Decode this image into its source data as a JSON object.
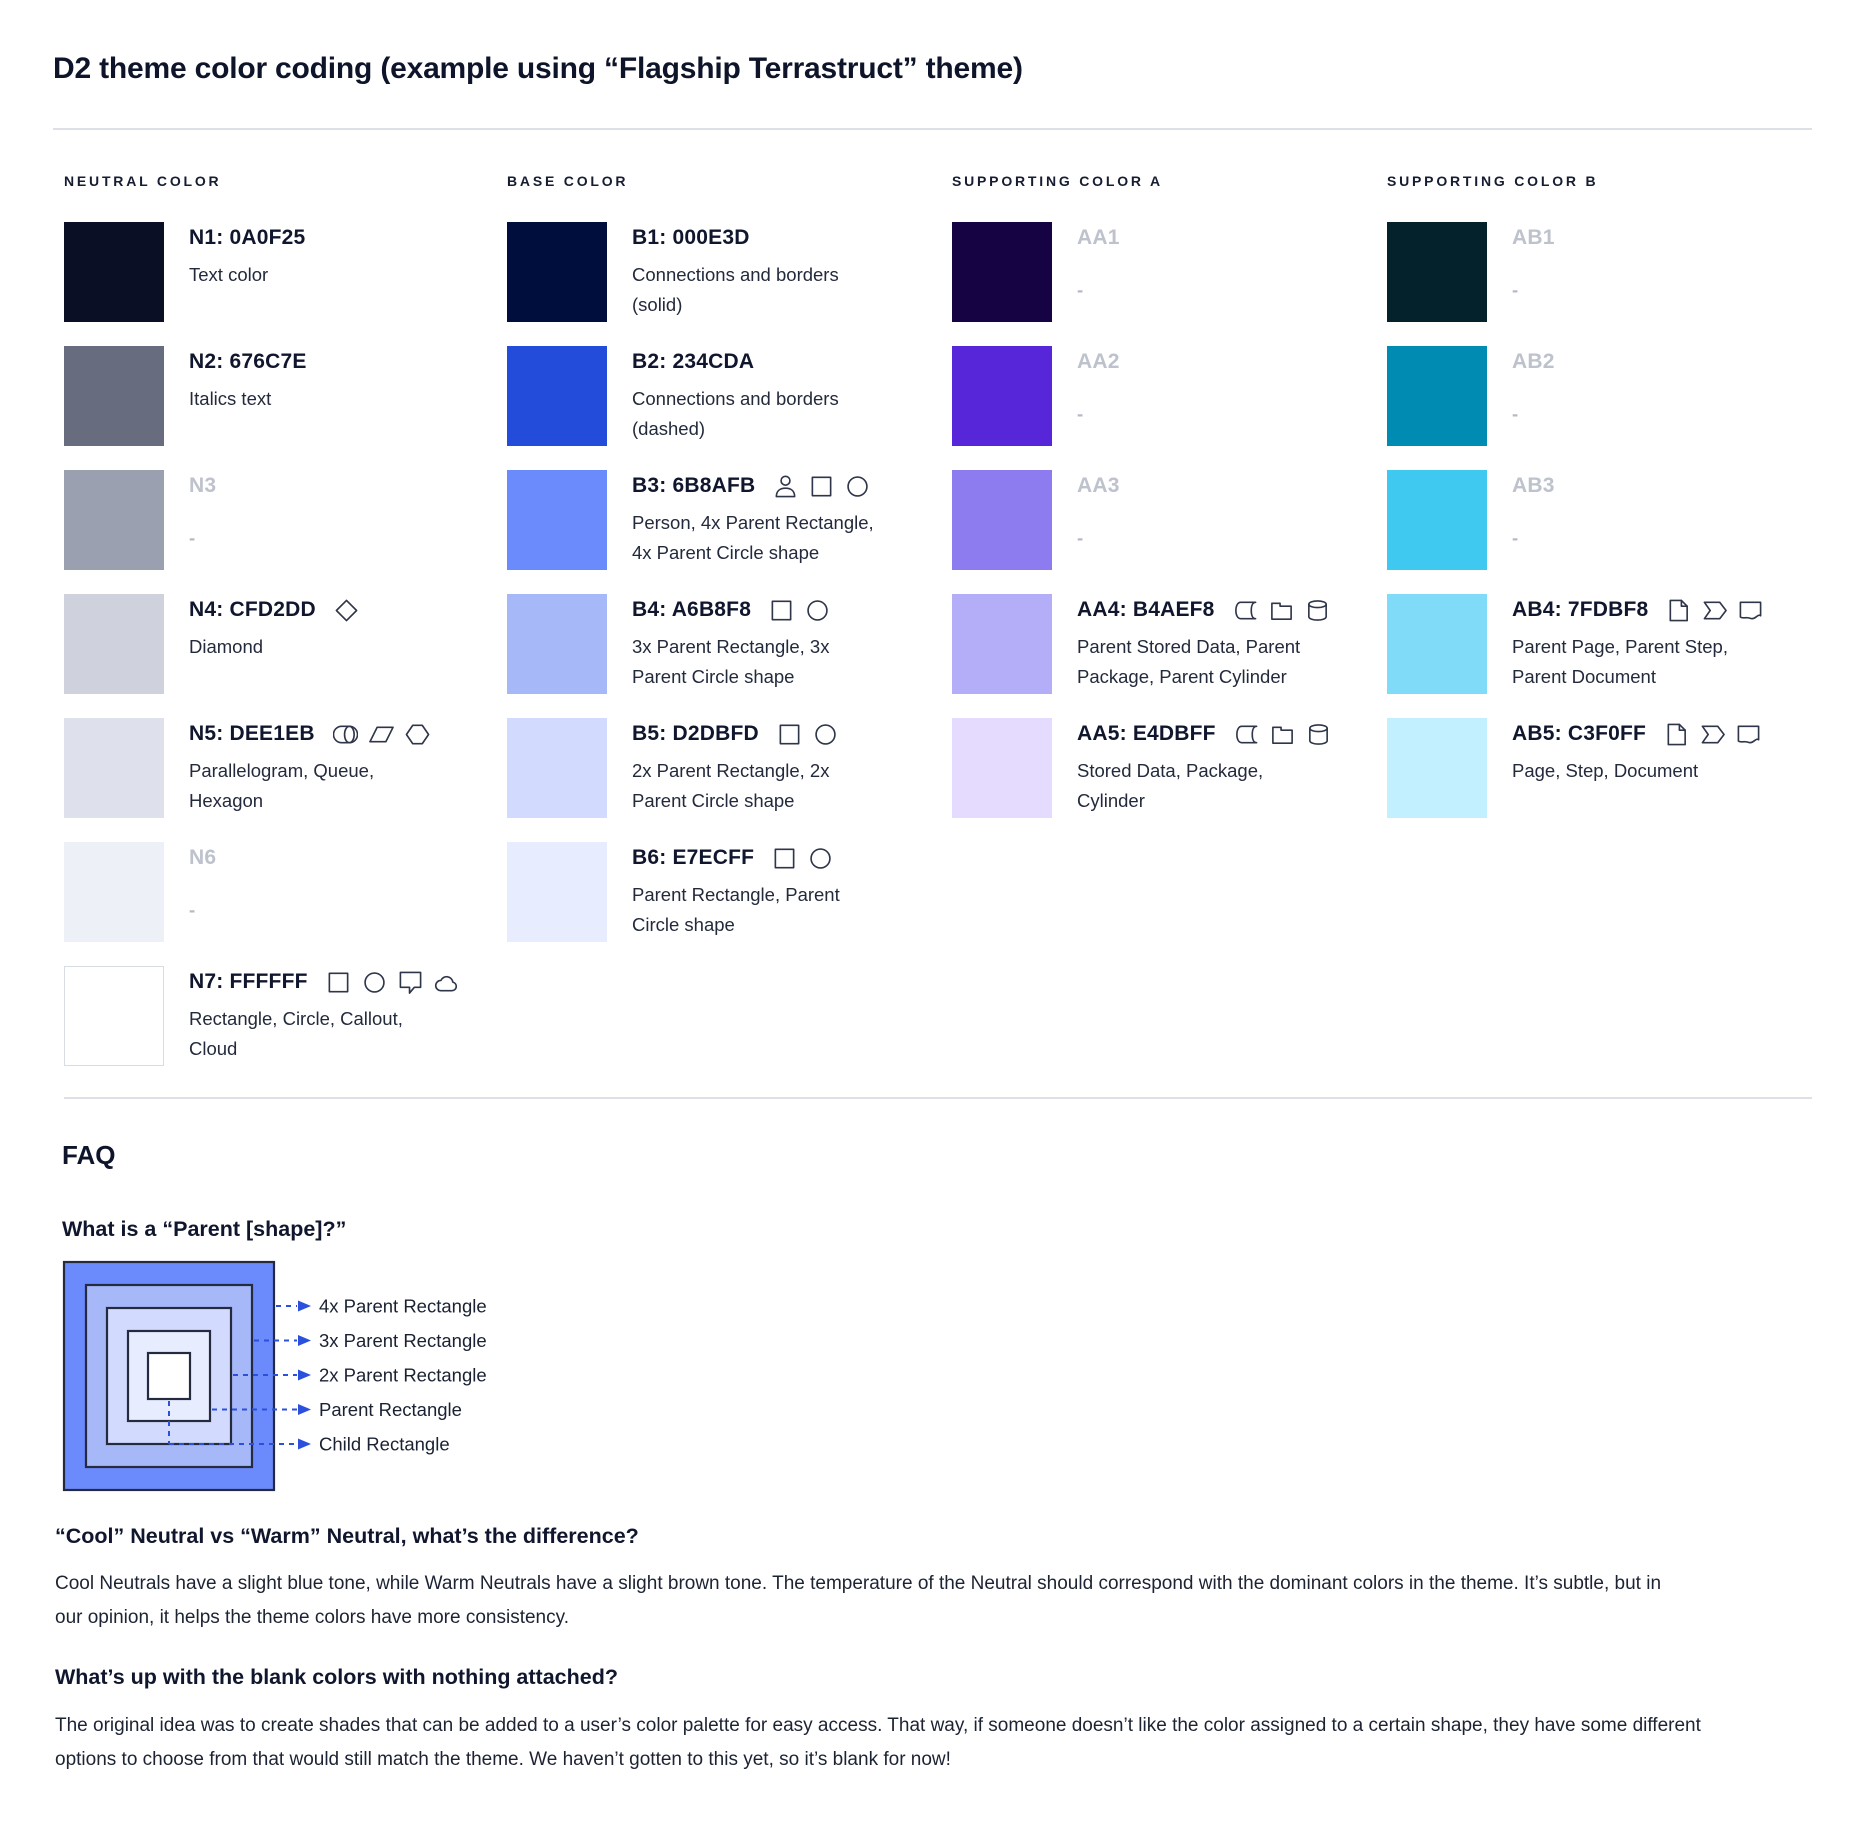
{
  "page": {
    "title": "D2 theme color coding (example using “Flagship Terrastruct” theme)"
  },
  "palette": {
    "columns": [
      {
        "header": "NEUTRAL COLOR",
        "rows": [
          {
            "label": "N1: 0A0F25",
            "swatch": "#0A0F25",
            "description": "Text color",
            "icons": [],
            "muted": false,
            "bordered": false
          },
          {
            "label": "N2: 676C7E",
            "swatch": "#676C7E",
            "description": "Italics text",
            "icons": [],
            "muted": false,
            "bordered": false
          },
          {
            "label": "N3",
            "swatch": "#9AA0AF",
            "description": "-",
            "icons": [],
            "muted": true,
            "bordered": false
          },
          {
            "label": "N4: CFD2DD",
            "swatch": "#CFD2DD",
            "description": "Diamond",
            "icons": [
              "diamond-icon"
            ],
            "muted": false,
            "bordered": false
          },
          {
            "label": "N5: DEE1EB",
            "swatch": "#DEE1EB",
            "description": "Parallelogram, Queue, Hexagon",
            "icons": [
              "queue-icon",
              "parallelogram-icon",
              "hexagon-icon"
            ],
            "muted": false,
            "bordered": false
          },
          {
            "label": "N6",
            "swatch": "#EDF0F7",
            "description": "-",
            "icons": [],
            "muted": true,
            "bordered": false
          },
          {
            "label": "N7: FFFFFF",
            "swatch": "#FFFFFF",
            "description": "Rectangle, Circle, Callout, Cloud",
            "icons": [
              "rectangle-icon",
              "circle-icon",
              "callout-icon",
              "cloud-icon"
            ],
            "muted": false,
            "bordered": true
          }
        ]
      },
      {
        "header": "BASE COLOR",
        "rows": [
          {
            "label": "B1: 000E3D",
            "swatch": "#000E3D",
            "description": "Connections and borders (solid)",
            "icons": [],
            "muted": false,
            "bordered": false
          },
          {
            "label": "B2: 234CDA",
            "swatch": "#234CDA",
            "description": "Connections and borders (dashed)",
            "icons": [],
            "muted": false,
            "bordered": false
          },
          {
            "label": "B3: 6B8AFB",
            "swatch": "#6B8AFB",
            "description": "Person, 4x Parent Rectangle, 4x Parent Circle shape",
            "icons": [
              "person-icon",
              "rectangle-icon",
              "circle-icon"
            ],
            "muted": false,
            "bordered": false
          },
          {
            "label": "B4: A6B8F8",
            "swatch": "#A6B8F8",
            "description": "3x Parent Rectangle, 3x Parent Circle shape",
            "icons": [
              "rectangle-icon",
              "circle-icon"
            ],
            "muted": false,
            "bordered": false
          },
          {
            "label": "B5: D2DBFD",
            "swatch": "#D2DBFD",
            "description": "2x Parent Rectangle, 2x Parent Circle shape",
            "icons": [
              "rectangle-icon",
              "circle-icon"
            ],
            "muted": false,
            "bordered": false
          },
          {
            "label": "B6: E7ECFF",
            "swatch": "#E7ECFF",
            "description": "Parent Rectangle, Parent Circle shape",
            "icons": [
              "rectangle-icon",
              "circle-icon"
            ],
            "muted": false,
            "bordered": false
          }
        ]
      },
      {
        "header": "SUPPORTING COLOR A",
        "rows": [
          {
            "label": "AA1",
            "swatch": "#160344",
            "description": "-",
            "icons": [],
            "muted": true,
            "bordered": false
          },
          {
            "label": "AA2",
            "swatch": "#5726D9",
            "description": "-",
            "icons": [],
            "muted": true,
            "bordered": false
          },
          {
            "label": "AA3",
            "swatch": "#8C7CF0",
            "description": "-",
            "icons": [],
            "muted": true,
            "bordered": false
          },
          {
            "label": "AA4: B4AEF8",
            "swatch": "#B4AEF8",
            "description": "Parent Stored Data, Parent Package, Parent Cylinder",
            "icons": [
              "stored-data-icon",
              "package-icon",
              "cylinder-icon"
            ],
            "muted": false,
            "bordered": false
          },
          {
            "label": "AA5: E4DBFF",
            "swatch": "#E4DBFF",
            "description": "Stored Data, Package, Cylinder",
            "icons": [
              "stored-data-icon",
              "package-icon",
              "cylinder-icon"
            ],
            "muted": false,
            "bordered": false
          }
        ]
      },
      {
        "header": "SUPPORTING COLOR B",
        "rows": [
          {
            "label": "AB1",
            "swatch": "#03222C",
            "description": "-",
            "icons": [],
            "muted": true,
            "bordered": false
          },
          {
            "label": "AB2",
            "swatch": "#008BB2",
            "description": "-",
            "icons": [],
            "muted": true,
            "bordered": false
          },
          {
            "label": "AB3",
            "swatch": "#3FC8F0",
            "description": "-",
            "icons": [],
            "muted": true,
            "bordered": false
          },
          {
            "label": "AB4: 7FDBF8",
            "swatch": "#7FDBF8",
            "description": "Parent Page, Parent Step, Parent Document",
            "icons": [
              "page-icon",
              "step-icon",
              "document-icon"
            ],
            "muted": false,
            "bordered": false
          },
          {
            "label": "AB5: C3F0FF",
            "swatch": "#C3F0FF",
            "description": "Page, Step, Document",
            "icons": [
              "page-icon",
              "step-icon",
              "document-icon"
            ],
            "muted": false,
            "bordered": false
          }
        ]
      }
    ]
  },
  "faq": {
    "title": "FAQ",
    "q1": {
      "question": "What is a “Parent [shape]?”"
    },
    "diagram": {
      "layers": [
        {
          "label": "4x Parent Rectangle",
          "color": "#6B8AFB"
        },
        {
          "label": "3x Parent Rectangle",
          "color": "#A6B8F8"
        },
        {
          "label": "2x Parent Rectangle",
          "color": "#D2DBFD"
        },
        {
          "label": "Parent Rectangle",
          "color": "#E7ECFF"
        },
        {
          "label": "Child Rectangle",
          "color": "#FFFFFF"
        }
      ],
      "arrow_color": "#2B50DE",
      "border_color": "#242B3F"
    },
    "q2": {
      "question": "“Cool” Neutral vs “Warm” Neutral, what’s the difference?",
      "answer": "Cool Neutrals have a slight blue tone, while Warm Neutrals have a slight brown tone. The temperature of the Neutral should correspond with the dominant colors in the theme. It’s subtle, but in our opinion, it helps the theme colors have more consistency."
    },
    "q3": {
      "question": "What’s up with the blank colors with nothing attached?",
      "answer": "The original idea was to create shades that can be added to a user’s color palette for easy access. That way, if someone doesn’t like the color assigned to a certain shape, they have some different options to choose from that would still match the theme. We haven’t gotten to this yet, so it’s blank for now!"
    }
  }
}
